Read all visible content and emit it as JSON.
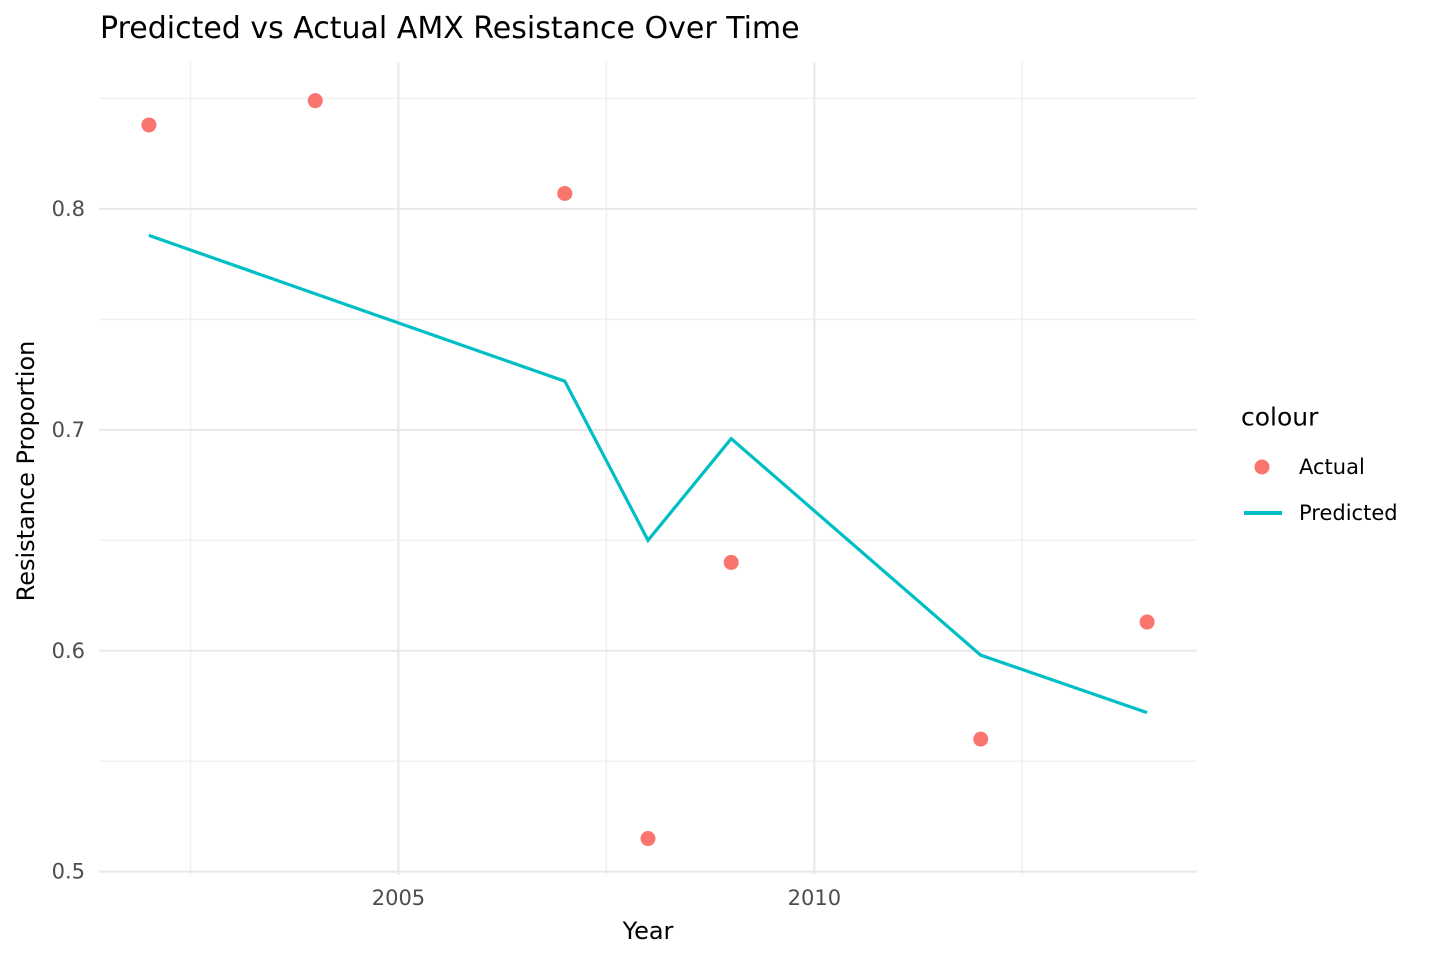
{
  "chart": {
    "title": "Predicted vs Actual AMX Resistance Over Time",
    "xlabel": "Year",
    "ylabel": "Resistance Proportion",
    "legend": {
      "title": "colour",
      "items": [
        {
          "label": "Actual",
          "swatch": "point"
        },
        {
          "label": "Predicted",
          "swatch": "line"
        }
      ]
    }
  },
  "chart_data": {
    "type": "scatter+line",
    "title": "Predicted vs Actual AMX Resistance Over Time",
    "xlabel": "Year",
    "ylabel": "Resistance Proportion",
    "grid": true,
    "legend_position": "right",
    "x_domain": [
      2001.4,
      2014.6
    ],
    "y_domain": [
      0.4985,
      0.8665
    ],
    "x_ticks": [
      {
        "v": 2005,
        "label": "2005"
      },
      {
        "v": 2010,
        "label": "2010"
      }
    ],
    "x_minor": [
      2002.5,
      2007.5,
      2012.5
    ],
    "y_ticks": [
      {
        "v": 0.5,
        "label": "0.5"
      },
      {
        "v": 0.6,
        "label": "0.6"
      },
      {
        "v": 0.7,
        "label": "0.7"
      },
      {
        "v": 0.8,
        "label": "0.8"
      }
    ],
    "y_minor": [
      0.55,
      0.65,
      0.75,
      0.85
    ],
    "series": [
      {
        "name": "Actual",
        "type": "scatter",
        "color": "#F8766D",
        "x": [
          2002,
          2004,
          2007,
          2008,
          2009,
          2012,
          2014
        ],
        "y": [
          0.838,
          0.849,
          0.807,
          0.515,
          0.64,
          0.56,
          0.613
        ]
      },
      {
        "name": "Predicted",
        "type": "line",
        "color": "#00BFC4",
        "x": [
          2002,
          2007,
          2008,
          2009,
          2012,
          2014
        ],
        "y": [
          0.788,
          0.722,
          0.65,
          0.696,
          0.598,
          0.572
        ]
      }
    ]
  },
  "colors": {
    "actual": "#F8766D",
    "predicted": "#00BFC4",
    "grid_major": "#E8E8E8",
    "grid_minor": "#F0F0F0",
    "tick_label": "#4D4D4D",
    "text": "#000000",
    "background": "#FFFFFF"
  }
}
